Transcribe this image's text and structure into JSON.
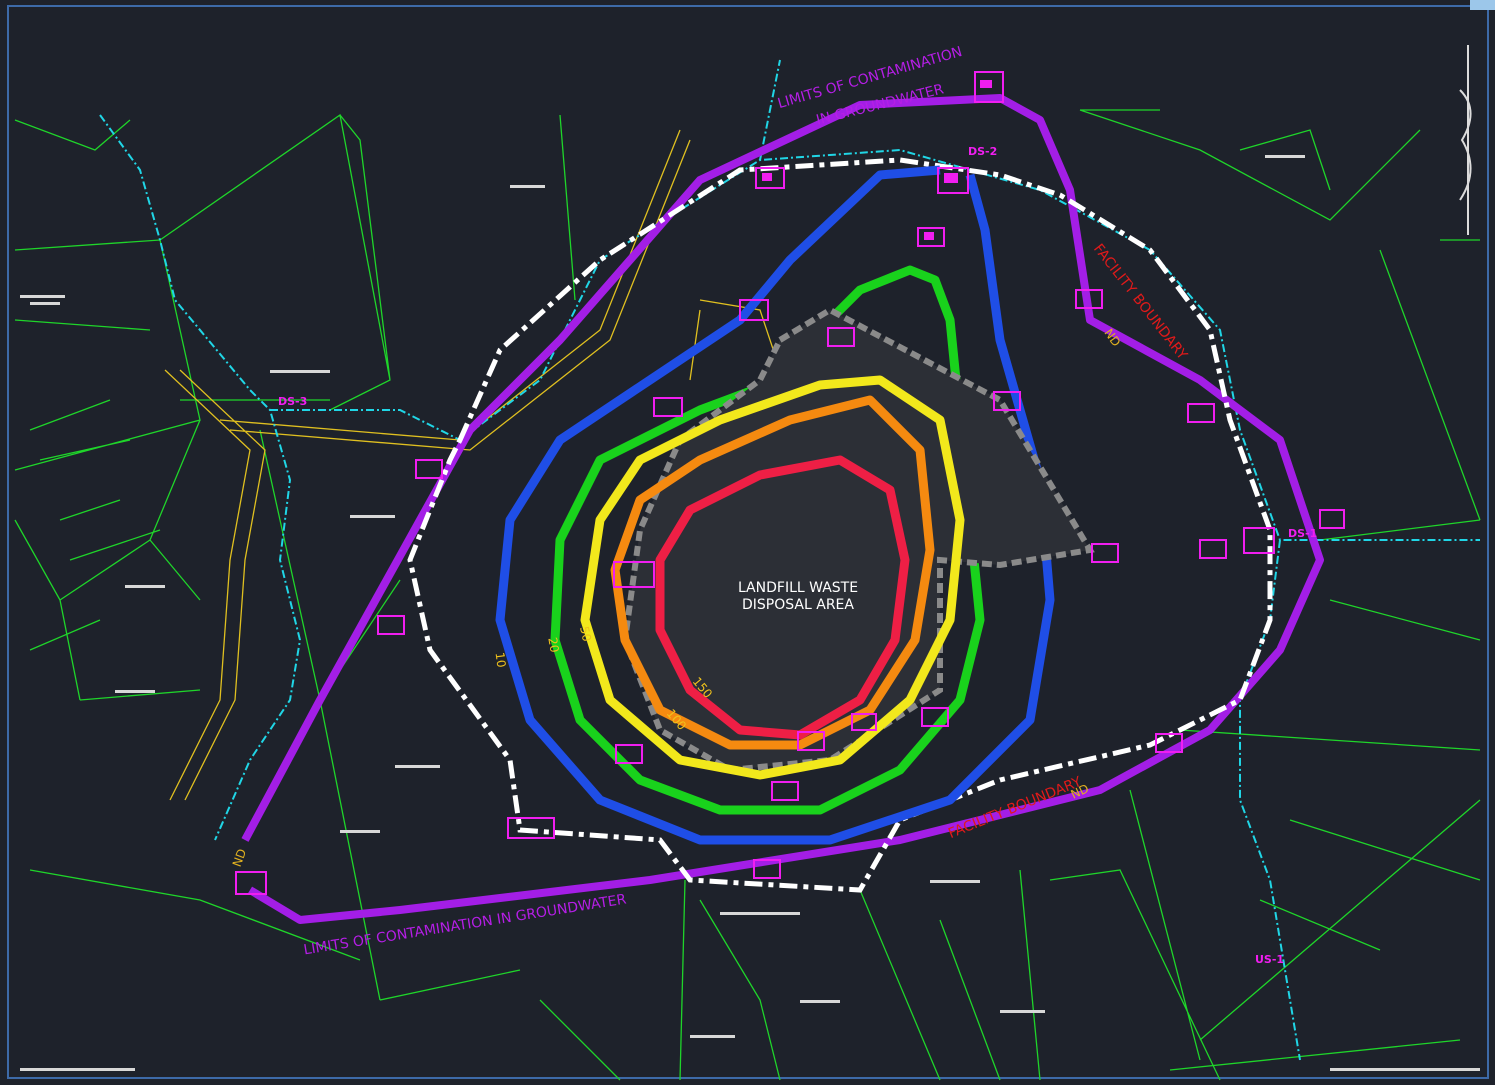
{
  "map": {
    "annotations": {
      "limits_top": [
        "LIMITS OF CONTAMINATION",
        "IN GROUNDWATER"
      ],
      "limits_bottom": "LIMITS OF CONTAMINATION IN GROUNDWATER",
      "facility_boundary": [
        "FACILITY BOUNDARY",
        "FACILITY BOUNDARY"
      ],
      "landfill": [
        "LANDFILL WASTE",
        "DISPOSAL AREA"
      ]
    },
    "contours": [
      {
        "label": 10,
        "color": "#1f4ee6"
      },
      {
        "label": 20,
        "color": "#19d21c"
      },
      {
        "label": 50,
        "color": "#f2e81c"
      },
      {
        "label": 100,
        "color": "#f58a10"
      },
      {
        "label": 150,
        "color": "#ee1f45"
      }
    ],
    "wells": [
      "DS-2",
      "DS-1",
      "DS-3",
      "US-1"
    ],
    "nd": [
      "ND",
      "ND",
      "ND"
    ]
  }
}
